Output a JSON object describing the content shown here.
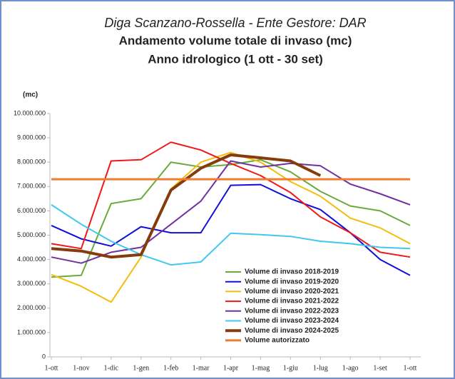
{
  "chart_data": {
    "type": "line",
    "title": "Diga Scanzano-Rossella - Ente Gestore: DAR",
    "subtitle": "Andamento volume totale di invaso (mc)",
    "subtitle2": "Anno idrologico (1 ott - 30 set)",
    "y_label": "(mc)",
    "categories": [
      "1-ott",
      "1-nov",
      "1-dic",
      "1-gen",
      "1-feb",
      "1-mar",
      "1-apr",
      "1-mag",
      "1-giu",
      "1-lug",
      "1-ago",
      "1-set",
      "1-ott"
    ],
    "ylim": [
      0,
      10000000
    ],
    "yticks": [
      0,
      {
        "value": 1000000,
        "label": "1.000.000"
      },
      {
        "value": 2000000,
        "label": "2.000.000"
      },
      {
        "value": 3000000,
        "label": "3.000.000"
      },
      {
        "value": 4000000,
        "label": "4.000.000"
      },
      {
        "value": 5000000,
        "label": "5.000.000"
      },
      {
        "value": 6000000,
        "label": "6.000.000"
      },
      {
        "value": 7000000,
        "label": "7.000.000"
      },
      {
        "value": 8000000,
        "label": "8.000.000"
      },
      {
        "value": 9000000,
        "label": "9.000.000"
      },
      {
        "value": 10000000,
        "label": "10.000.000"
      }
    ],
    "series": [
      {
        "name": "Volume di invaso 2018-2019",
        "color": "#6aaa3a",
        "width": 2,
        "values": [
          3280000,
          3350000,
          6300000,
          6500000,
          8000000,
          7800000,
          7900000,
          8100000,
          7600000,
          6800000,
          6200000,
          6000000,
          5400000
        ]
      },
      {
        "name": "Volume di invaso 2019-2020",
        "color": "#1010d8",
        "width": 2,
        "values": [
          5400000,
          4850000,
          4550000,
          5350000,
          5100000,
          5100000,
          7050000,
          7080000,
          6500000,
          6050000,
          5100000,
          4000000,
          3350000
        ]
      },
      {
        "name": "Volume di invaso 2020-2021",
        "color": "#f4bc0c",
        "width": 2,
        "values": [
          3380000,
          2900000,
          2250000,
          4100000,
          6900000,
          8000000,
          8400000,
          8000000,
          7200000,
          6600000,
          5700000,
          5300000,
          4650000
        ]
      },
      {
        "name": "Volume di invaso 2021-2022",
        "color": "#f01818",
        "width": 2,
        "values": [
          4650000,
          4450000,
          8050000,
          8100000,
          8820000,
          8500000,
          7950000,
          7450000,
          6750000,
          5750000,
          5100000,
          4300000,
          4100000
        ]
      },
      {
        "name": "Volume di invaso 2022-2023",
        "color": "#7030a0",
        "width": 2,
        "values": [
          4100000,
          3850000,
          4300000,
          4500000,
          5450000,
          6400000,
          8050000,
          7800000,
          7950000,
          7850000,
          7100000,
          6700000,
          6250000
        ]
      },
      {
        "name": "Volume di invaso 2023-2024",
        "color": "#40c8f0",
        "width": 2,
        "values": [
          6250000,
          5450000,
          4750000,
          4200000,
          3780000,
          3900000,
          5080000,
          5020000,
          4950000,
          4750000,
          4650000,
          4500000,
          4450000
        ]
      },
      {
        "name": "Volume di invaso 2024-2025",
        "color": "#843c0c",
        "width": 4,
        "values": [
          4450000,
          4350000,
          4100000,
          4200000,
          6850000,
          7750000,
          8300000,
          8180000,
          8050000,
          7450000,
          null,
          null,
          null
        ]
      },
      {
        "name": "Volume autorizzato",
        "color": "#ed7d31",
        "width": 3,
        "values": [
          7300000,
          7300000,
          7300000,
          7300000,
          7300000,
          7300000,
          7300000,
          7300000,
          7300000,
          7300000,
          7300000,
          7300000,
          7300000
        ]
      }
    ]
  }
}
